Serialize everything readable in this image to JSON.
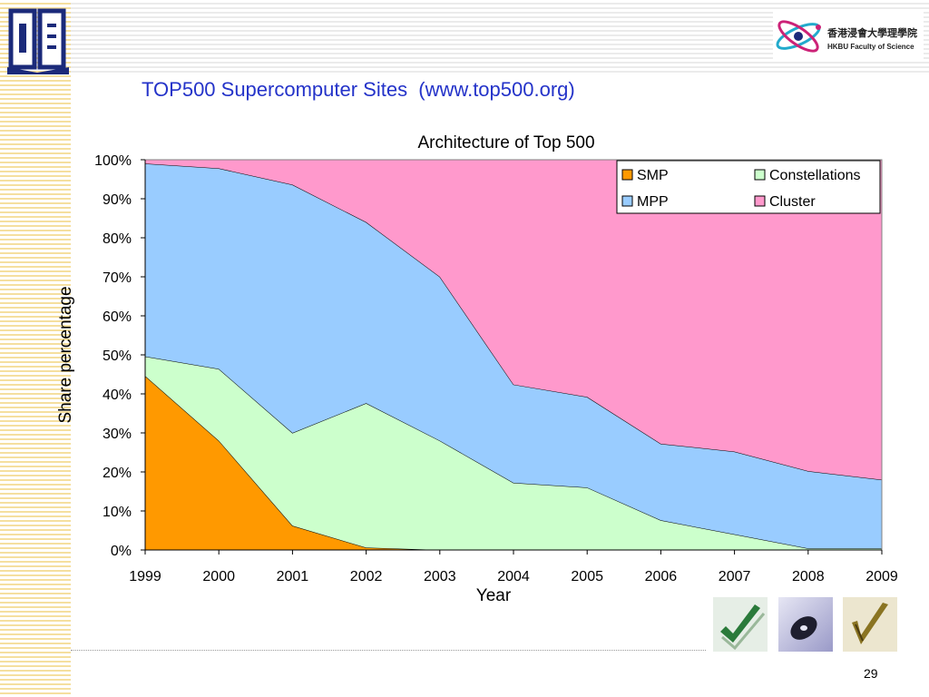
{
  "slide": {
    "title": "TOP500 Supercomputer Sites  (www.top500.org)",
    "page_number": "29",
    "logo_right": {
      "text_zh": "香港浸會大學理學院",
      "text_en": "HKBU  Faculty of Science"
    }
  },
  "icons": {
    "logo_left": "book-logo-icon",
    "logo_right": "atom-logo-icon",
    "thumbnails": [
      "green-checkmark-icon",
      "disc-icon",
      "gold-checkmark-icon"
    ]
  },
  "colors": {
    "title": "#2433c9",
    "SMP": "#ff9900",
    "Constellations": "#ccffcc",
    "MPP": "#99ccff",
    "Cluster": "#ff99cc"
  },
  "chart_data": {
    "type": "area",
    "stacked": true,
    "title": "Architecture of Top 500",
    "xlabel": "Year",
    "ylabel": "Share percentage",
    "ylim": [
      0,
      100
    ],
    "y_ticks": [
      "0%",
      "10%",
      "20%",
      "30%",
      "40%",
      "50%",
      "60%",
      "70%",
      "80%",
      "90%",
      "100%"
    ],
    "x": [
      "1999",
      "2000",
      "2001",
      "2002",
      "2003",
      "2004",
      "2005",
      "2006",
      "2007",
      "2008",
      "2009"
    ],
    "series": [
      {
        "name": "SMP",
        "values": [
          44.6,
          28,
          6.2,
          0.6,
          0,
          0,
          0,
          0,
          0,
          0,
          0
        ]
      },
      {
        "name": "Constellations",
        "values": [
          5,
          18.4,
          23.8,
          37,
          28,
          17.2,
          16,
          7.6,
          4,
          0.4,
          0.4
        ]
      },
      {
        "name": "MPP",
        "values": [
          49.4,
          51.4,
          63.6,
          46.4,
          42,
          25.2,
          23.2,
          19.6,
          21.2,
          19.8,
          17.6
        ]
      },
      {
        "name": "Cluster",
        "values": [
          1,
          2.2,
          6.4,
          16,
          30,
          57.6,
          60.8,
          72.8,
          74.8,
          79.8,
          82
        ]
      }
    ],
    "legend": {
      "position": "top-right",
      "entries": [
        "SMP",
        "Constellations",
        "MPP",
        "Cluster"
      ]
    }
  }
}
